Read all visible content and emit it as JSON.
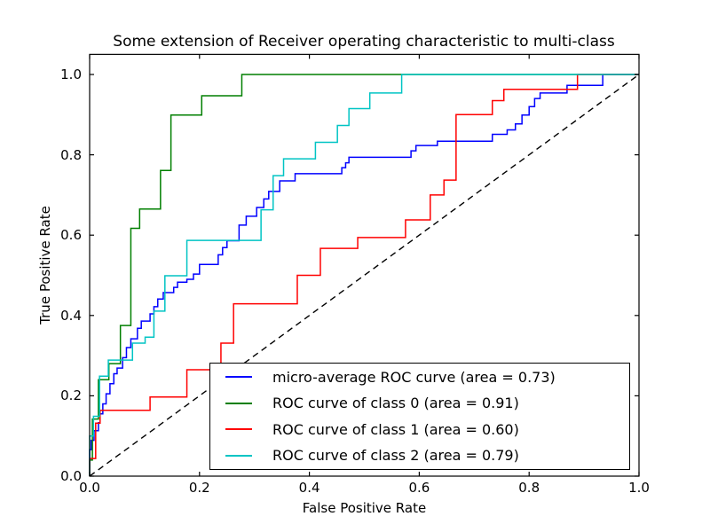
{
  "chart_data": {
    "type": "line",
    "subtype": "roc-step-curves",
    "title": "Some extension of Receiver operating characteristic to multi-class",
    "xlabel": "False Positive Rate",
    "ylabel": "True Positive Rate",
    "xlim": [
      0.0,
      1.0
    ],
    "ylim": [
      0.0,
      1.05
    ],
    "grid": false,
    "legend_position": "lower right",
    "x_ticks": [
      "0.0",
      "0.2",
      "0.4",
      "0.6",
      "0.8",
      "1.0"
    ],
    "y_ticks": [
      "0.0",
      "0.2",
      "0.4",
      "0.6",
      "0.8",
      "1.0"
    ],
    "x_tick_values": [
      0,
      0.2,
      0.4,
      0.6,
      0.8,
      1.0
    ],
    "y_tick_values": [
      0,
      0.2,
      0.4,
      0.6,
      0.8,
      1.0
    ],
    "series": [
      {
        "name": "micro-average",
        "label": "micro-average ROC curve (area = 0.73)",
        "color": "#0000ff",
        "style": "solid",
        "area": 0.73,
        "points": [
          [
            0,
            0
          ],
          [
            0,
            0.066
          ],
          [
            0.003,
            0.066
          ],
          [
            0.003,
            0.089
          ],
          [
            0.008,
            0.089
          ],
          [
            0.008,
            0.113
          ],
          [
            0.016,
            0.113
          ],
          [
            0.016,
            0.133
          ],
          [
            0.019,
            0.133
          ],
          [
            0.019,
            0.155
          ],
          [
            0.024,
            0.155
          ],
          [
            0.024,
            0.18
          ],
          [
            0.03,
            0.18
          ],
          [
            0.03,
            0.205
          ],
          [
            0.037,
            0.205
          ],
          [
            0.037,
            0.23
          ],
          [
            0.044,
            0.23
          ],
          [
            0.044,
            0.255
          ],
          [
            0.05,
            0.255
          ],
          [
            0.05,
            0.269
          ],
          [
            0.06,
            0.269
          ],
          [
            0.06,
            0.295
          ],
          [
            0.067,
            0.295
          ],
          [
            0.067,
            0.32
          ],
          [
            0.075,
            0.32
          ],
          [
            0.075,
            0.342
          ],
          [
            0.087,
            0.342
          ],
          [
            0.087,
            0.368
          ],
          [
            0.094,
            0.368
          ],
          [
            0.094,
            0.386
          ],
          [
            0.11,
            0.386
          ],
          [
            0.11,
            0.404
          ],
          [
            0.117,
            0.404
          ],
          [
            0.117,
            0.422
          ],
          [
            0.124,
            0.422
          ],
          [
            0.124,
            0.441
          ],
          [
            0.134,
            0.441
          ],
          [
            0.134,
            0.457
          ],
          [
            0.153,
            0.457
          ],
          [
            0.153,
            0.47
          ],
          [
            0.16,
            0.47
          ],
          [
            0.16,
            0.483
          ],
          [
            0.177,
            0.483
          ],
          [
            0.177,
            0.49
          ],
          [
            0.189,
            0.49
          ],
          [
            0.189,
            0.503
          ],
          [
            0.2,
            0.503
          ],
          [
            0.2,
            0.527
          ],
          [
            0.234,
            0.527
          ],
          [
            0.234,
            0.551
          ],
          [
            0.242,
            0.551
          ],
          [
            0.242,
            0.569
          ],
          [
            0.25,
            0.569
          ],
          [
            0.25,
            0.586
          ],
          [
            0.272,
            0.586
          ],
          [
            0.272,
            0.625
          ],
          [
            0.285,
            0.625
          ],
          [
            0.285,
            0.647
          ],
          [
            0.304,
            0.647
          ],
          [
            0.304,
            0.669
          ],
          [
            0.317,
            0.669
          ],
          [
            0.317,
            0.69
          ],
          [
            0.326,
            0.69
          ],
          [
            0.326,
            0.709
          ],
          [
            0.346,
            0.709
          ],
          [
            0.346,
            0.735
          ],
          [
            0.374,
            0.735
          ],
          [
            0.374,
            0.753
          ],
          [
            0.459,
            0.753
          ],
          [
            0.459,
            0.768
          ],
          [
            0.466,
            0.768
          ],
          [
            0.466,
            0.78
          ],
          [
            0.472,
            0.78
          ],
          [
            0.472,
            0.794
          ],
          [
            0.585,
            0.794
          ],
          [
            0.585,
            0.81
          ],
          [
            0.594,
            0.81
          ],
          [
            0.594,
            0.823
          ],
          [
            0.633,
            0.823
          ],
          [
            0.633,
            0.834
          ],
          [
            0.733,
            0.834
          ],
          [
            0.733,
            0.851
          ],
          [
            0.76,
            0.851
          ],
          [
            0.76,
            0.862
          ],
          [
            0.775,
            0.862
          ],
          [
            0.775,
            0.877
          ],
          [
            0.787,
            0.877
          ],
          [
            0.787,
            0.899
          ],
          [
            0.8,
            0.899
          ],
          [
            0.8,
            0.92
          ],
          [
            0.81,
            0.92
          ],
          [
            0.81,
            0.94
          ],
          [
            0.82,
            0.94
          ],
          [
            0.82,
            0.954
          ],
          [
            0.869,
            0.954
          ],
          [
            0.869,
            0.973
          ],
          [
            0.934,
            0.973
          ],
          [
            0.934,
            1
          ],
          [
            1,
            1
          ]
        ]
      },
      {
        "name": "class-0",
        "label": "ROC curve of class 0 (area = 0.91)",
        "color": "#007f00",
        "style": "solid",
        "area": 0.91,
        "points": [
          [
            0,
            0
          ],
          [
            0,
            0.04
          ],
          [
            0.005,
            0.04
          ],
          [
            0.005,
            0.142
          ],
          [
            0.016,
            0.142
          ],
          [
            0.016,
            0.24
          ],
          [
            0.035,
            0.24
          ],
          [
            0.035,
            0.28
          ],
          [
            0.056,
            0.28
          ],
          [
            0.056,
            0.375
          ],
          [
            0.075,
            0.375
          ],
          [
            0.075,
            0.617
          ],
          [
            0.091,
            0.617
          ],
          [
            0.091,
            0.665
          ],
          [
            0.129,
            0.665
          ],
          [
            0.129,
            0.761
          ],
          [
            0.148,
            0.761
          ],
          [
            0.148,
            0.899
          ],
          [
            0.204,
            0.899
          ],
          [
            0.204,
            0.947
          ],
          [
            0.277,
            0.947
          ],
          [
            0.277,
            1
          ],
          [
            1,
            1
          ]
        ]
      },
      {
        "name": "class-1",
        "label": "ROC curve of class 1 (area = 0.60)",
        "color": "#ff0000",
        "style": "solid",
        "area": 0.6,
        "points": [
          [
            0,
            0
          ],
          [
            0,
            0.044
          ],
          [
            0.011,
            0.044
          ],
          [
            0.011,
            0.132
          ],
          [
            0.019,
            0.132
          ],
          [
            0.019,
            0.164
          ],
          [
            0.11,
            0.164
          ],
          [
            0.11,
            0.197
          ],
          [
            0.177,
            0.197
          ],
          [
            0.177,
            0.265
          ],
          [
            0.239,
            0.265
          ],
          [
            0.239,
            0.331
          ],
          [
            0.262,
            0.331
          ],
          [
            0.262,
            0.429
          ],
          [
            0.378,
            0.429
          ],
          [
            0.378,
            0.5
          ],
          [
            0.42,
            0.5
          ],
          [
            0.42,
            0.567
          ],
          [
            0.488,
            0.567
          ],
          [
            0.488,
            0.594
          ],
          [
            0.575,
            0.594
          ],
          [
            0.575,
            0.638
          ],
          [
            0.62,
            0.638
          ],
          [
            0.62,
            0.7
          ],
          [
            0.645,
            0.7
          ],
          [
            0.645,
            0.737
          ],
          [
            0.667,
            0.737
          ],
          [
            0.667,
            0.9
          ],
          [
            0.733,
            0.9
          ],
          [
            0.733,
            0.935
          ],
          [
            0.754,
            0.935
          ],
          [
            0.754,
            0.963
          ],
          [
            0.888,
            0.963
          ],
          [
            0.888,
            1
          ],
          [
            1,
            1
          ]
        ]
      },
      {
        "name": "class-2",
        "label": "ROC curve of class 2 (area = 0.79)",
        "color": "#00c4c4",
        "style": "solid",
        "area": 0.79,
        "points": [
          [
            0,
            0
          ],
          [
            0,
            0.1
          ],
          [
            0.007,
            0.1
          ],
          [
            0.007,
            0.149
          ],
          [
            0.018,
            0.149
          ],
          [
            0.018,
            0.249
          ],
          [
            0.034,
            0.249
          ],
          [
            0.034,
            0.289
          ],
          [
            0.078,
            0.289
          ],
          [
            0.078,
            0.331
          ],
          [
            0.101,
            0.331
          ],
          [
            0.101,
            0.346
          ],
          [
            0.117,
            0.346
          ],
          [
            0.117,
            0.411
          ],
          [
            0.137,
            0.411
          ],
          [
            0.137,
            0.499
          ],
          [
            0.177,
            0.499
          ],
          [
            0.177,
            0.587
          ],
          [
            0.312,
            0.587
          ],
          [
            0.312,
            0.663
          ],
          [
            0.334,
            0.663
          ],
          [
            0.334,
            0.748
          ],
          [
            0.353,
            0.748
          ],
          [
            0.353,
            0.79
          ],
          [
            0.411,
            0.79
          ],
          [
            0.411,
            0.831
          ],
          [
            0.451,
            0.831
          ],
          [
            0.451,
            0.873
          ],
          [
            0.472,
            0.873
          ],
          [
            0.472,
            0.915
          ],
          [
            0.51,
            0.915
          ],
          [
            0.51,
            0.954
          ],
          [
            0.568,
            0.954
          ],
          [
            0.568,
            1
          ],
          [
            1,
            1
          ]
        ]
      }
    ],
    "reference_line": {
      "name": "chance-diagonal",
      "color": "#000000",
      "style": "dashed",
      "points": [
        [
          0,
          0
        ],
        [
          1,
          1
        ]
      ]
    }
  }
}
